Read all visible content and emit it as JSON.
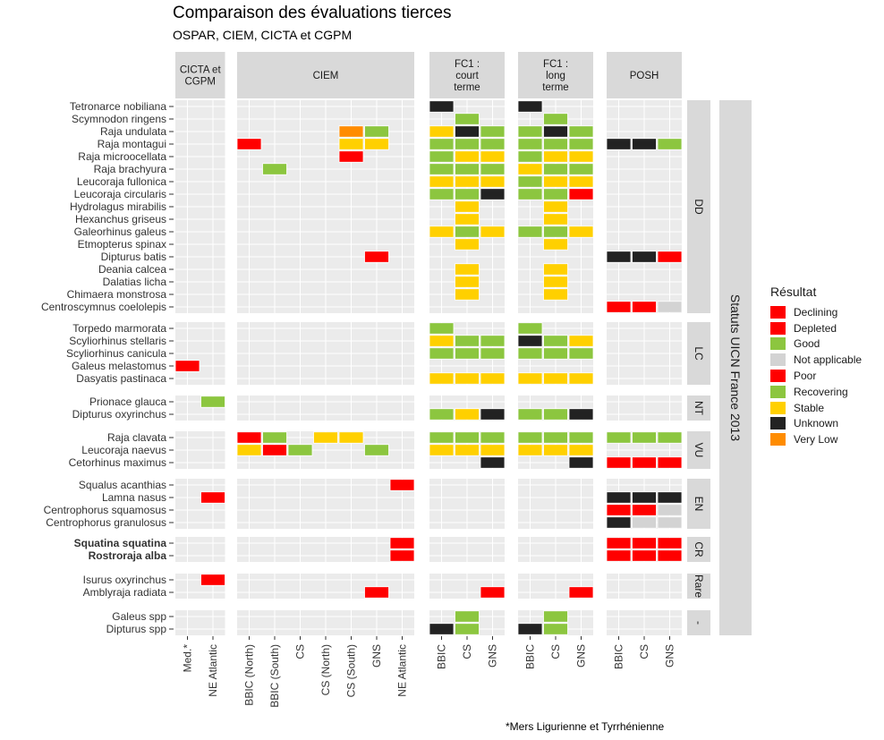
{
  "title": "Comparaison des évaluations tierces",
  "subtitle": "OSPAR, CIEM, CICTA et CGPM",
  "footnote": "*Mers Ligurienne et Tyrrhénienne",
  "chart_data": {
    "type": "heatmap",
    "facet_strip_right": "Statuts UICN France 2013",
    "legend": {
      "title": "Résultat",
      "items": [
        {
          "label": "Declining",
          "color": "#FF0000"
        },
        {
          "label": "Depleted",
          "color": "#FF0000"
        },
        {
          "label": "Good",
          "color": "#8CC63F"
        },
        {
          "label": "Not applicable",
          "color": "#D3D3D3"
        },
        {
          "label": "Poor",
          "color": "#FF0000"
        },
        {
          "label": "Recovering",
          "color": "#8CC63F"
        },
        {
          "label": "Stable",
          "color": "#FFD000"
        },
        {
          "label": "Unknown",
          "color": "#222222"
        },
        {
          "label": "Very Low",
          "color": "#FF8C00"
        }
      ]
    },
    "columns": [
      {
        "panel": "CICTA et\nCGPM",
        "cols": [
          "Med.*",
          "NE Atlantic"
        ]
      },
      {
        "panel": "CIEM",
        "cols": [
          "BBIC (North)",
          "BBIC (South)",
          "CS",
          "CS (North)",
          "CS (South)",
          "GNS",
          "NE Atlantic"
        ]
      },
      {
        "panel": "FC1 :\ncourt\nterme",
        "cols": [
          "BBIC",
          "CS",
          "GNS"
        ]
      },
      {
        "panel": "FC1 :\nlong\nterme",
        "cols": [
          "BBIC",
          "CS",
          "GNS"
        ]
      },
      {
        "panel": "POSH",
        "cols": [
          "BBIC",
          "CS",
          "GNS"
        ]
      }
    ],
    "row_groups": [
      {
        "status": "DD",
        "species": [
          {
            "name": "Tetronarce nobiliana",
            "bold": false,
            "cells": {
              "2.0": "Unknown",
              "3.0": "Unknown"
            }
          },
          {
            "name": "Scymnodon ringens",
            "bold": false,
            "cells": {
              "2.1": "Good",
              "3.1": "Good"
            }
          },
          {
            "name": "Raja undulata",
            "bold": false,
            "cells": {
              "1.4": "Very Low",
              "1.5": "Good",
              "2.0": "Stable",
              "2.1": "Unknown",
              "2.2": "Good",
              "3.0": "Good",
              "3.1": "Unknown",
              "3.2": "Good"
            }
          },
          {
            "name": "Raja montagui",
            "bold": false,
            "cells": {
              "1.0": "Poor",
              "1.4": "Stable",
              "1.5": "Stable",
              "2.0": "Good",
              "2.1": "Good",
              "2.2": "Good",
              "3.0": "Good",
              "3.1": "Good",
              "3.2": "Good",
              "4.0": "Unknown",
              "4.1": "Unknown",
              "4.2": "Good"
            }
          },
          {
            "name": "Raja microocellata",
            "bold": false,
            "cells": {
              "1.4": "Poor",
              "2.0": "Good",
              "2.1": "Stable",
              "2.2": "Stable",
              "3.0": "Good",
              "3.1": "Stable",
              "3.2": "Stable"
            }
          },
          {
            "name": "Raja brachyura",
            "bold": false,
            "cells": {
              "1.1": "Good",
              "2.0": "Good",
              "2.1": "Good",
              "2.2": "Good",
              "3.0": "Stable",
              "3.1": "Good",
              "3.2": "Good"
            }
          },
          {
            "name": "Leucoraja fullonica",
            "bold": false,
            "cells": {
              "2.0": "Stable",
              "2.1": "Stable",
              "2.2": "Stable",
              "3.0": "Good",
              "3.1": "Stable",
              "3.2": "Stable"
            }
          },
          {
            "name": "Leucoraja circularis",
            "bold": false,
            "cells": {
              "2.0": "Good",
              "2.1": "Good",
              "2.2": "Unknown",
              "3.0": "Good",
              "3.1": "Good",
              "3.2": "Poor"
            }
          },
          {
            "name": "Hydrolagus mirabilis",
            "bold": false,
            "cells": {
              "2.1": "Stable",
              "3.1": "Stable"
            }
          },
          {
            "name": "Hexanchus griseus",
            "bold": false,
            "cells": {
              "2.1": "Stable",
              "3.1": "Stable"
            }
          },
          {
            "name": "Galeorhinus galeus",
            "bold": false,
            "cells": {
              "2.0": "Stable",
              "2.1": "Good",
              "2.2": "Stable",
              "3.0": "Good",
              "3.1": "Good",
              "3.2": "Stable"
            }
          },
          {
            "name": "Etmopterus spinax",
            "bold": false,
            "cells": {
              "2.1": "Stable",
              "3.1": "Stable"
            }
          },
          {
            "name": "Dipturus batis",
            "bold": false,
            "cells": {
              "1.5": "Poor",
              "4.0": "Unknown",
              "4.1": "Unknown",
              "4.2": "Poor"
            }
          },
          {
            "name": "Deania calcea",
            "bold": false,
            "cells": {
              "2.1": "Stable",
              "3.1": "Stable"
            }
          },
          {
            "name": "Dalatias licha",
            "bold": false,
            "cells": {
              "2.1": "Stable",
              "3.1": "Stable"
            }
          },
          {
            "name": "Chimaera monstrosa",
            "bold": false,
            "cells": {
              "2.1": "Stable",
              "3.1": "Stable"
            }
          },
          {
            "name": "Centroscymnus coelolepis",
            "bold": false,
            "cells": {
              "4.0": "Poor",
              "4.1": "Poor",
              "4.2": "Not applicable"
            }
          }
        ]
      },
      {
        "status": "LC",
        "species": [
          {
            "name": "Torpedo marmorata",
            "bold": false,
            "cells": {
              "2.0": "Good",
              "3.0": "Good"
            }
          },
          {
            "name": "Scyliorhinus stellaris",
            "bold": false,
            "cells": {
              "2.0": "Stable",
              "2.1": "Good",
              "2.2": "Good",
              "3.0": "Unknown",
              "3.1": "Good",
              "3.2": "Stable"
            }
          },
          {
            "name": "Scyliorhinus canicula",
            "bold": false,
            "cells": {
              "2.0": "Good",
              "2.1": "Good",
              "2.2": "Good",
              "3.0": "Good",
              "3.1": "Good",
              "3.2": "Good"
            }
          },
          {
            "name": "Galeus melastomus",
            "bold": false,
            "cells": {
              "0.0": "Declining"
            }
          },
          {
            "name": "Dasyatis pastinaca",
            "bold": false,
            "cells": {
              "2.0": "Stable",
              "2.1": "Stable",
              "2.2": "Stable",
              "3.0": "Stable",
              "3.1": "Stable",
              "3.2": "Stable"
            }
          }
        ]
      },
      {
        "status": "NT",
        "species": [
          {
            "name": "Prionace glauca",
            "bold": false,
            "cells": {
              "0.1": "Recovering"
            }
          },
          {
            "name": "Dipturus oxyrinchus",
            "bold": false,
            "cells": {
              "2.0": "Good",
              "2.1": "Stable",
              "2.2": "Unknown",
              "3.0": "Good",
              "3.1": "Good",
              "3.2": "Unknown"
            }
          }
        ]
      },
      {
        "status": "VU",
        "species": [
          {
            "name": "Raja clavata",
            "bold": false,
            "cells": {
              "1.0": "Poor",
              "1.1": "Good",
              "1.3": "Stable",
              "1.4": "Stable",
              "2.0": "Good",
              "2.1": "Good",
              "2.2": "Good",
              "3.0": "Good",
              "3.1": "Good",
              "3.2": "Good",
              "4.0": "Good",
              "4.1": "Good",
              "4.2": "Good"
            }
          },
          {
            "name": "Leucoraja naevus",
            "bold": false,
            "cells": {
              "1.0": "Stable",
              "1.1": "Poor",
              "1.2": "Good",
              "1.5": "Good",
              "2.0": "Stable",
              "2.1": "Stable",
              "2.2": "Stable",
              "3.0": "Stable",
              "3.1": "Stable",
              "3.2": "Stable"
            }
          },
          {
            "name": "Cetorhinus maximus",
            "bold": false,
            "cells": {
              "2.2": "Unknown",
              "3.2": "Unknown",
              "4.0": "Poor",
              "4.1": "Poor",
              "4.2": "Poor"
            }
          }
        ]
      },
      {
        "status": "EN",
        "species": [
          {
            "name": "Squalus acanthias",
            "bold": false,
            "cells": {
              "1.6": "Poor"
            }
          },
          {
            "name": "Lamna nasus",
            "bold": false,
            "cells": {
              "0.1": "Depleted",
              "4.0": "Unknown",
              "4.1": "Unknown",
              "4.2": "Unknown"
            }
          },
          {
            "name": "Centrophorus squamosus",
            "bold": false,
            "cells": {
              "4.0": "Poor",
              "4.1": "Poor",
              "4.2": "Not applicable"
            }
          },
          {
            "name": "Centrophorus granulosus",
            "bold": false,
            "cells": {
              "4.0": "Unknown",
              "4.1": "Not applicable",
              "4.2": "Not applicable"
            }
          }
        ]
      },
      {
        "status": "CR",
        "species": [
          {
            "name": "Squatina squatina",
            "bold": true,
            "cells": {
              "1.6": "Poor",
              "4.0": "Poor",
              "4.1": "Poor",
              "4.2": "Poor"
            }
          },
          {
            "name": "Rostroraja alba",
            "bold": true,
            "cells": {
              "1.6": "Poor",
              "4.0": "Poor",
              "4.1": "Poor",
              "4.2": "Poor"
            }
          }
        ]
      },
      {
        "status": "Rare",
        "species": [
          {
            "name": "Isurus oxyrinchus",
            "bold": false,
            "cells": {
              "0.1": "Depleted"
            }
          },
          {
            "name": "Amblyraja radiata",
            "bold": false,
            "cells": {
              "1.5": "Poor",
              "2.2": "Poor",
              "3.2": "Poor"
            }
          }
        ]
      },
      {
        "status": "-",
        "species": [
          {
            "name": "Galeus spp",
            "bold": false,
            "cells": {
              "2.1": "Good",
              "3.1": "Good"
            }
          },
          {
            "name": "Dipturus spp",
            "bold": false,
            "cells": {
              "2.0": "Unknown",
              "2.1": "Good",
              "3.0": "Unknown",
              "3.1": "Good"
            }
          }
        ]
      }
    ]
  }
}
